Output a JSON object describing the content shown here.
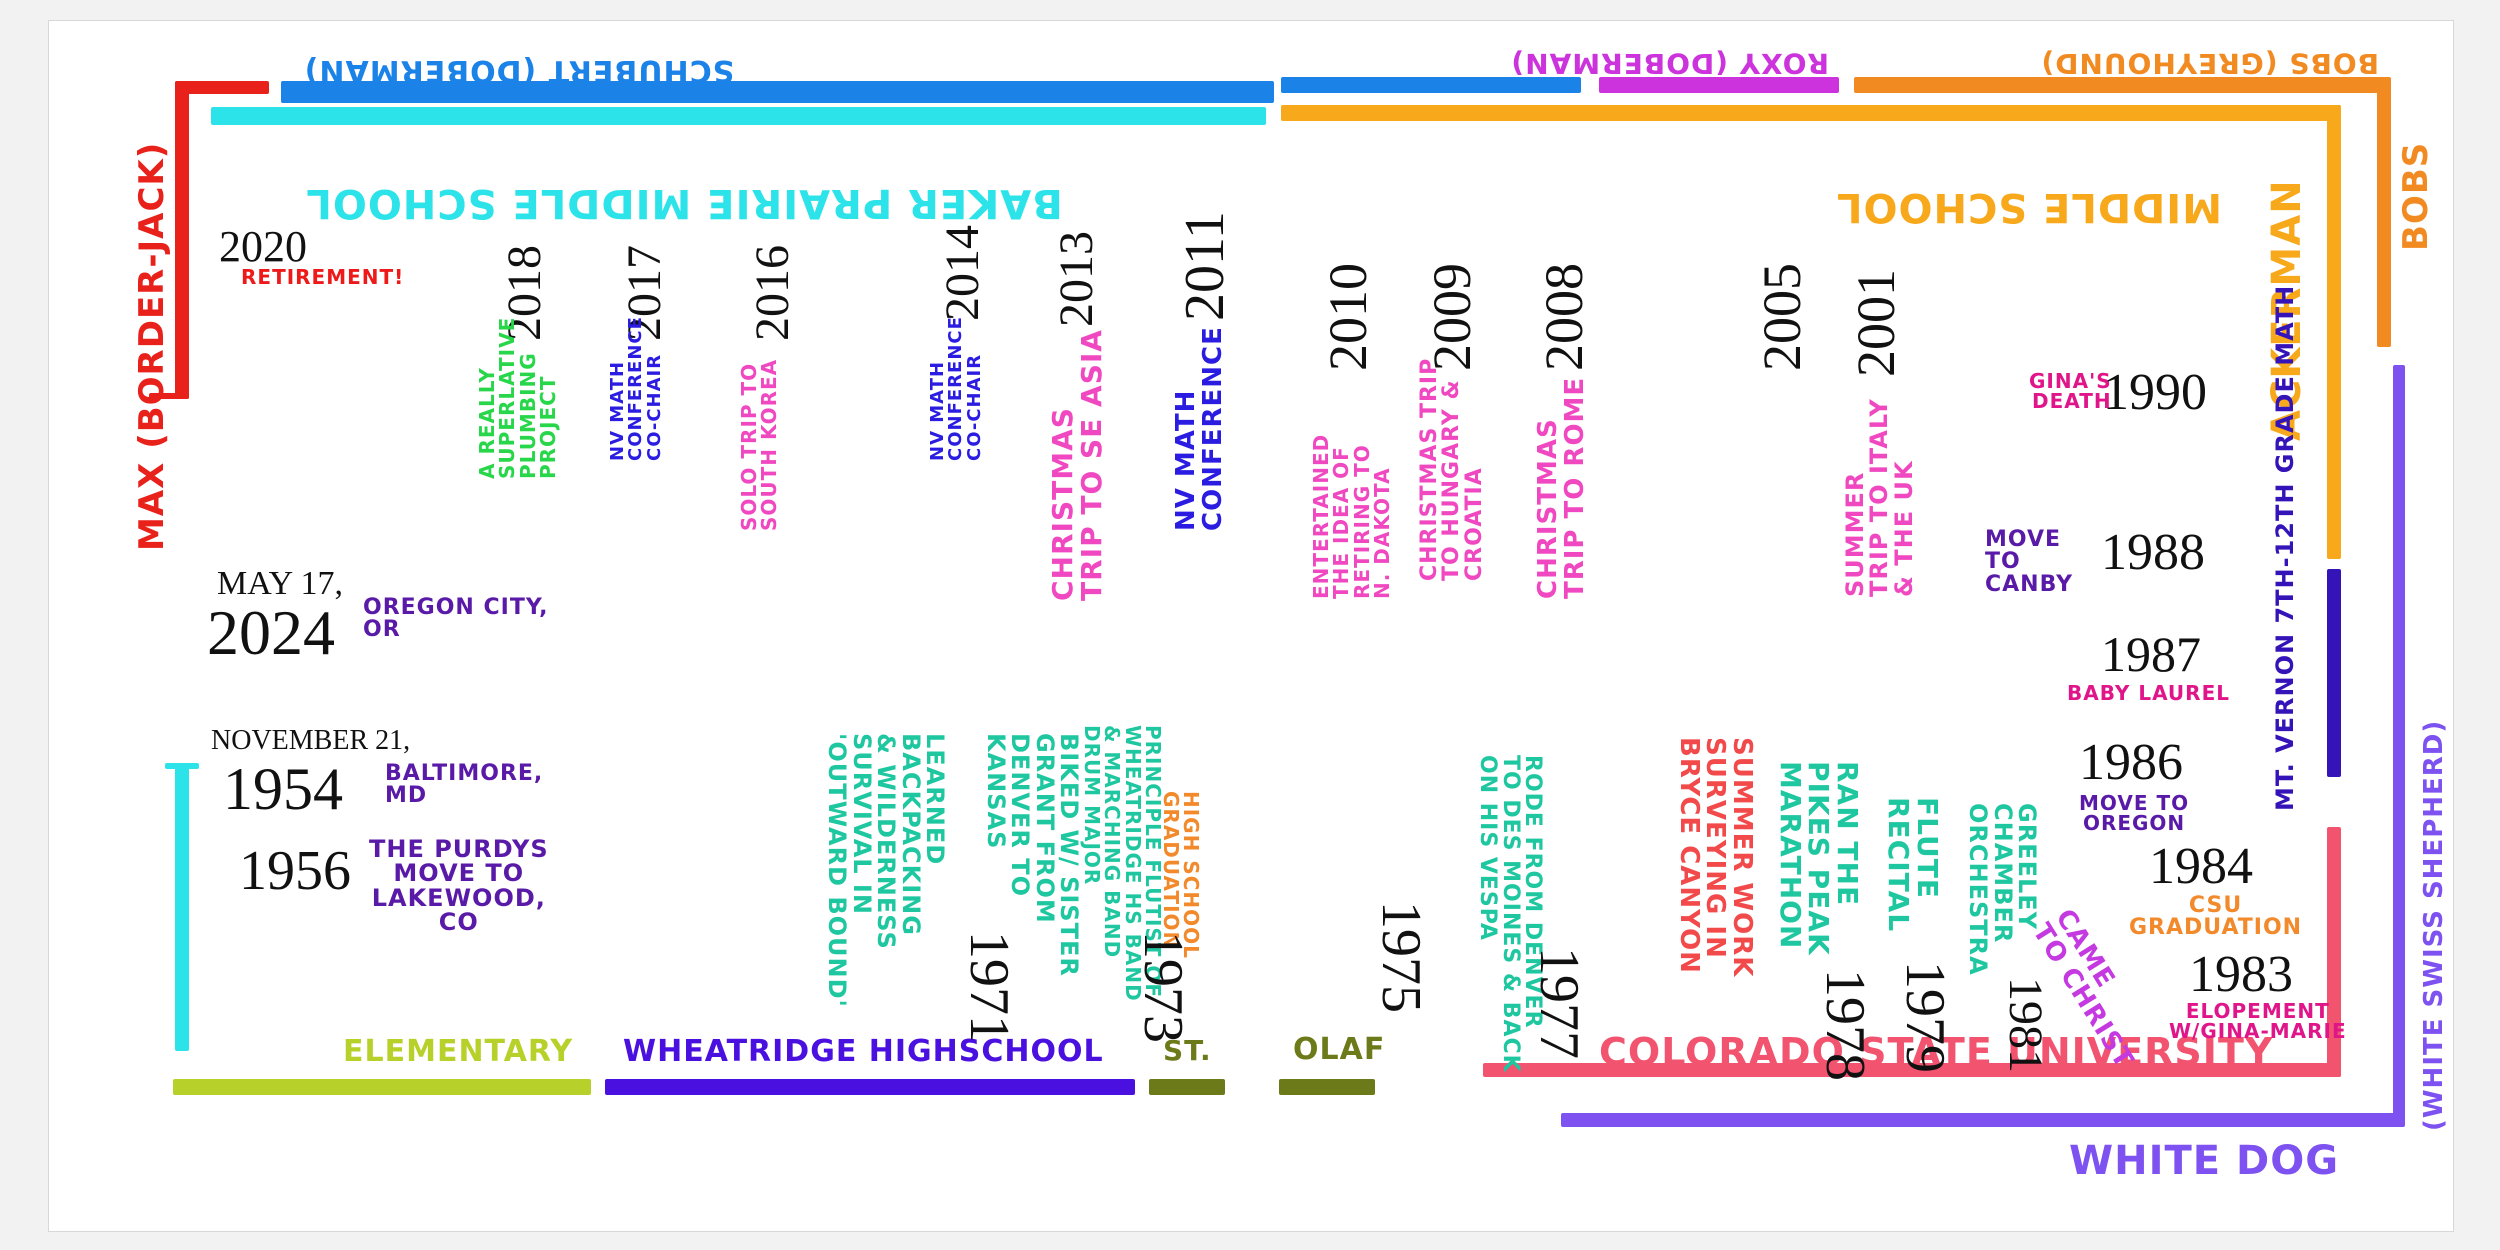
{
  "colors": {
    "max": "#e8211a",
    "schubert": "#1b82e8",
    "roxy": "#cc33dd",
    "bobs": "#f28a22",
    "white_dog": "#7d52f0",
    "baker": "#2de3ea",
    "ackerman": "#f7a81b",
    "mtvernon": "#3413b8",
    "csu": "#f2536e",
    "elementary": "#b8d12a",
    "wheatridge": "#4a10e0",
    "stolaf": "#6d7a1a",
    "birth": "#2de3ea",
    "retirement": "#ee1a1a",
    "purple": "#5a1aa8",
    "teal": "#1ec7a0",
    "green": "#28d64a",
    "pink": "#f048c0",
    "orange": "#f2892a",
    "blue_text": "#2a1ce0",
    "red_text": "#f24a4a",
    "magenta_text": "#e0158a",
    "violet_text": "#c43ae0"
  },
  "dogs": {
    "max": "MAX (BORDER-JACK)",
    "schubert": "SCHUBERT (DOBERMAN)",
    "roxy": "ROXY (DOBERMAN)",
    "bobs": "BOBS (GREYHOUND)",
    "white_dog": "WHITE DOG",
    "white_dog_breed": "(WHITE SWISS SHEPHERD)"
  },
  "schools": {
    "baker": "BAKER PRAIRIE MIDDLE SCHOOL",
    "ackerman_middle": "MIDDLE SCHOOL",
    "ackerman": "ACKERMAN",
    "mtvernon": "MT. VERNON 7TH-12TH GRADE MATH",
    "csu": "COLORADO STATE UNIVERSITY",
    "elementary": "ELEMENTARY",
    "wheatridge": "WHEATRIDGE HIGHSCHOOL",
    "st": "ST.",
    "olaf": "OLAF"
  },
  "top_events": [
    {
      "year": "2020",
      "label": "RETIREMENT!"
    },
    {
      "year": "2018",
      "label": "A REALLY\nSUPERLATIVE\nPLUMBING\nPROJECT"
    },
    {
      "year": "2017",
      "label": "NV MATH\nCONFERENCE\nCO-CHAIR"
    },
    {
      "year": "2016",
      "label": "SOLO TRIP TO\nSOUTH KOREA"
    },
    {
      "year": "2014",
      "label": "NV MATH\nCONFERENCE\nCO-CHAIR"
    },
    {
      "year": "2013",
      "label": "CHRISTMAS\nTRIP TO SE ASIA"
    },
    {
      "year": "2011",
      "label": "NV MATH\nCONFERENCE"
    },
    {
      "year": "2010",
      "label": "ENTERTAINED\nTHE IDEA OF\nRETIRING TO\nN. DAKOTA"
    },
    {
      "year": "2009",
      "label": "CHRISTMAS TRIP\nTO HUNGARY &\nCROATIA"
    },
    {
      "year": "2008",
      "label": "CHRISTMAS\nTRIP TO ROME"
    },
    {
      "year": "2005",
      "label": ""
    },
    {
      "year": "2001",
      "label": "SUMMER\nTRIP TO ITALY\n& THE UK"
    }
  ],
  "right_events": [
    {
      "year": "1990",
      "label": "GINA'S\nDEATH"
    },
    {
      "year": "1988",
      "label": "MOVE\nTO\nCANBY"
    },
    {
      "year": "1987",
      "label": "BABY LAUREL"
    },
    {
      "year": "1986",
      "label": "MOVE TO\nOREGON"
    },
    {
      "year": "1984",
      "label": "CSU\nGRADUATION"
    },
    {
      "year": "1983",
      "label": "ELOPEMENT\nW/GINA-MARIE"
    }
  ],
  "now": {
    "date": "MAY 17,",
    "year": "2024",
    "place": "OREGON CITY,\nOR"
  },
  "birth": {
    "date": "NOVEMBER 21,",
    "year": "1954",
    "place": "BALTIMORE,\nMD"
  },
  "move_1956": {
    "year": "1956",
    "label": "THE PURDYS\nMOVE TO\nLAKEWOOD,\nCO"
  },
  "bottom_events": [
    {
      "year": "1971",
      "label": "LEARNED\nBACKPACKING\n& WILDERNESS\nSURVIVAL IN\n'OUTWARD BOUND'"
    },
    {
      "year": "",
      "label": "BIKED W/ SISTER\nGRANT FROM\nDENVER TO\nKANSAS"
    },
    {
      "year": "",
      "label": "PRINCIPLE FLUTIST OF\nWHEATRIDGE HS BAND\n& MARCHING BAND\nDRUM MAJOR"
    },
    {
      "year": "1973",
      "label": "HIGH SCHOOL\nGRADUATION"
    },
    {
      "year": "1975",
      "label": ""
    },
    {
      "year": "1977",
      "label": "RODE FROM DENVER\nTO DES MOINES & BACK\nON HIS VESPA"
    },
    {
      "year": "",
      "label": "SUMMER WORK\nSURVEYING IN\nBRYCE CANYON"
    },
    {
      "year": "1978",
      "label": "RAN THE\nPIKES PEAK\nMARATHON"
    },
    {
      "year": "1979",
      "label": "FLUTE\nRECITAL"
    },
    {
      "year": "1981",
      "label": "GREELEY\nCHAMBER\nORCHESTRA"
    },
    {
      "year": "",
      "label": "CAME\nTO CHRIST"
    }
  ]
}
